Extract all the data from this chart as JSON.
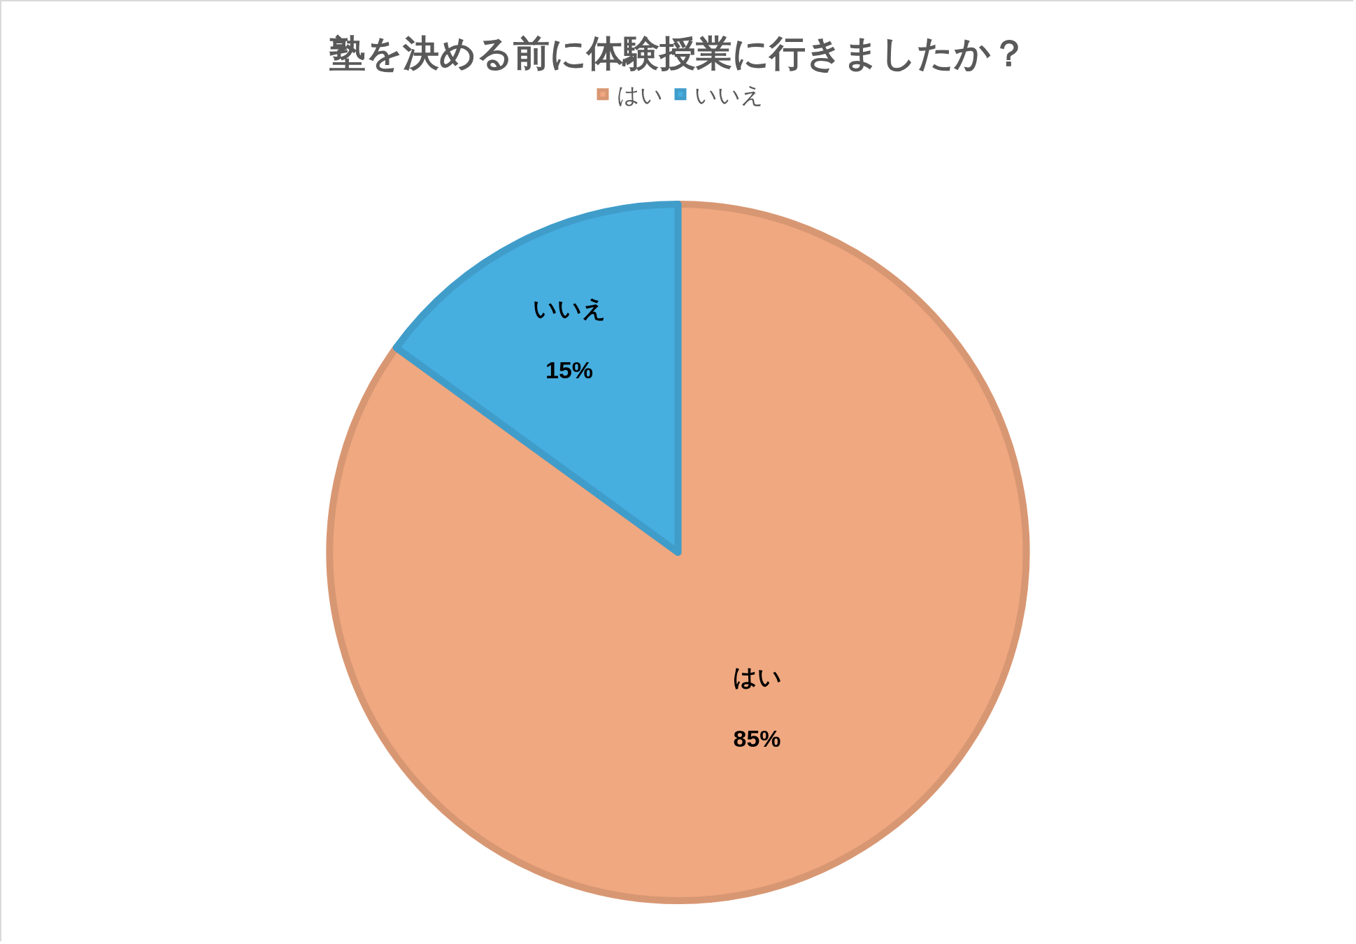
{
  "chart_data": {
    "type": "pie",
    "title": "塾を決める前に体験授業に行きましたか？",
    "categories": [
      "はい",
      "いいえ"
    ],
    "values": [
      85,
      15
    ],
    "colors": [
      "#f0a880",
      "#47aee0"
    ],
    "value_labels": [
      "85%",
      "15%"
    ],
    "legend": "top"
  }
}
